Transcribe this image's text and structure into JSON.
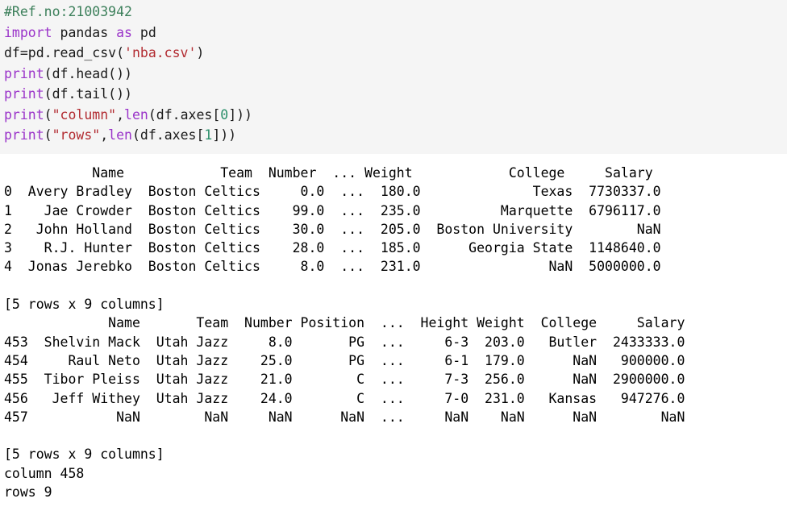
{
  "colors": {
    "code_background": "#f5f5f5",
    "output_background": "#ffffff",
    "comment": "#3b7f5a",
    "keyword": "#9a33c9",
    "string": "#b22b31",
    "number": "#2a8f6a"
  },
  "code_lines": [
    [
      {
        "t": "comment",
        "v": "#Ref.no:21003942"
      }
    ],
    [
      {
        "t": "keyword",
        "v": "import"
      },
      {
        "t": "plain",
        "v": " pandas "
      },
      {
        "t": "keyword",
        "v": "as"
      },
      {
        "t": "plain",
        "v": " pd"
      }
    ],
    [
      {
        "t": "plain",
        "v": "df=pd.read_csv("
      },
      {
        "t": "string",
        "v": "'nba.csv'"
      },
      {
        "t": "plain",
        "v": ")"
      }
    ],
    [
      {
        "t": "builtin",
        "v": "print"
      },
      {
        "t": "plain",
        "v": "(df.head())"
      }
    ],
    [
      {
        "t": "builtin",
        "v": "print"
      },
      {
        "t": "plain",
        "v": "(df.tail())"
      }
    ],
    [
      {
        "t": "builtin",
        "v": "print"
      },
      {
        "t": "plain",
        "v": "("
      },
      {
        "t": "string",
        "v": "\"column\""
      },
      {
        "t": "plain",
        "v": ","
      },
      {
        "t": "builtin",
        "v": "len"
      },
      {
        "t": "plain",
        "v": "(df.axes["
      },
      {
        "t": "number",
        "v": "0"
      },
      {
        "t": "plain",
        "v": "]))"
      }
    ],
    [
      {
        "t": "builtin",
        "v": "print"
      },
      {
        "t": "plain",
        "v": "("
      },
      {
        "t": "string",
        "v": "\"rows\""
      },
      {
        "t": "plain",
        "v": ","
      },
      {
        "t": "builtin",
        "v": "len"
      },
      {
        "t": "plain",
        "v": "(df.axes["
      },
      {
        "t": "number",
        "v": "1"
      },
      {
        "t": "plain",
        "v": "]))"
      }
    ]
  ],
  "output": {
    "lines": [
      "           Name            Team  Number  ... Weight            College     Salary",
      "0  Avery Bradley  Boston Celtics     0.0  ...  180.0              Texas  7730337.0",
      "1    Jae Crowder  Boston Celtics    99.0  ...  235.0          Marquette  6796117.0",
      "2   John Holland  Boston Celtics    30.0  ...  205.0  Boston University        NaN",
      "3    R.J. Hunter  Boston Celtics    28.0  ...  185.0      Georgia State  1148640.0",
      "4  Jonas Jerebko  Boston Celtics     8.0  ...  231.0                NaN  5000000.0",
      "",
      "[5 rows x 9 columns]",
      "             Name       Team  Number Position  ...  Height Weight  College     Salary",
      "453  Shelvin Mack  Utah Jazz     8.0       PG  ...     6-3  203.0   Butler  2433333.0",
      "454     Raul Neto  Utah Jazz    25.0       PG  ...     6-1  179.0      NaN   900000.0",
      "455  Tibor Pleiss  Utah Jazz    21.0        C  ...     7-3  256.0      NaN  2900000.0",
      "456   Jeff Withey  Utah Jazz    24.0        C  ...     7-0  231.0   Kansas   947276.0",
      "457           NaN        NaN     NaN      NaN  ...     NaN    NaN      NaN        NaN",
      "",
      "[5 rows x 9 columns]",
      "column 458",
      "rows 9"
    ]
  }
}
